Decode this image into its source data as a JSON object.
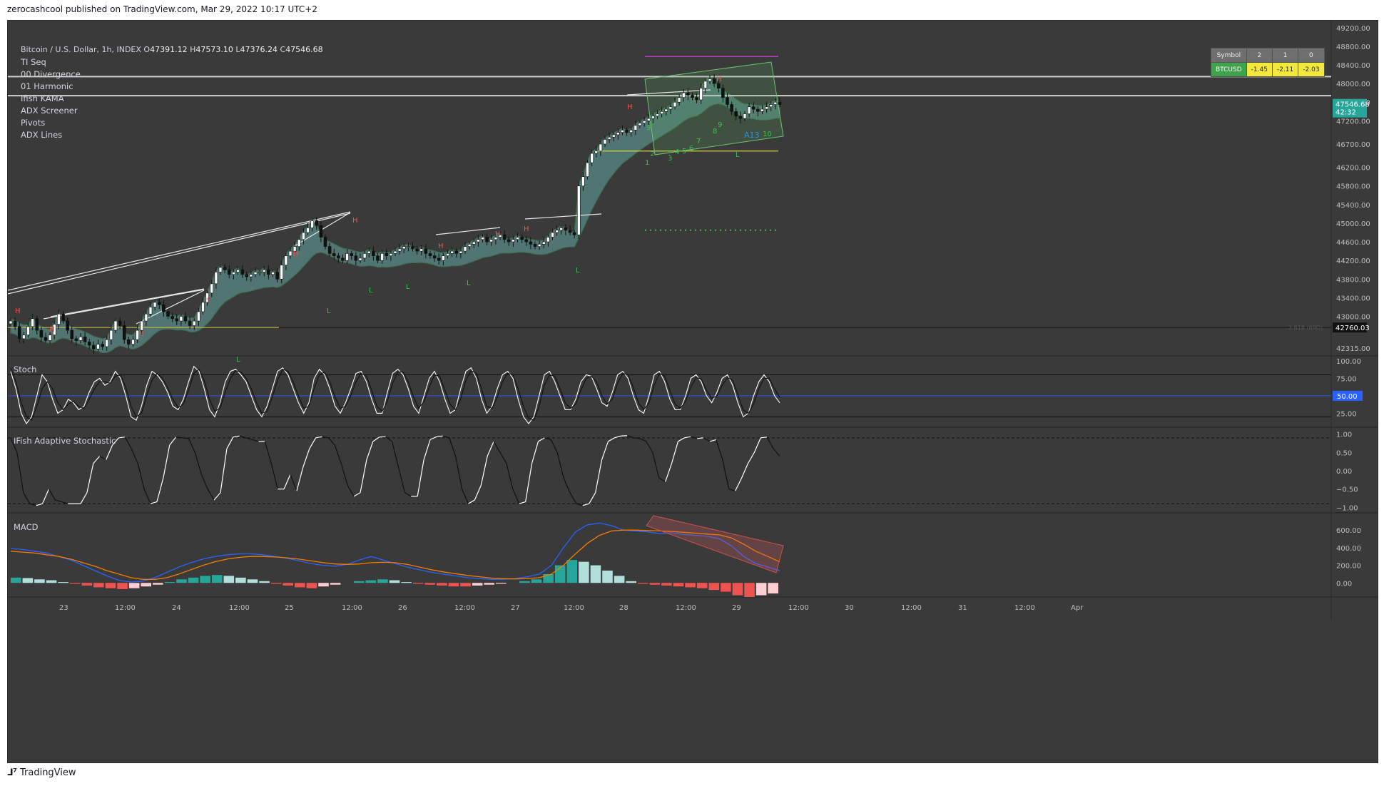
{
  "caption": "zerocashcool published on TradingView.com, Mar 29, 2022 10:17 UTC+2",
  "footer": {
    "icon": "tradingview-logo-icon",
    "brand": "TradingView"
  },
  "header": {
    "symbol": "Bitcoin / U.S. Dollar, 1h, INDEX",
    "ohlc": [
      {
        "k": "O",
        "v": "47391.12"
      },
      {
        "k": "H",
        "v": "47573.10"
      },
      {
        "k": "L",
        "v": "47376.24"
      },
      {
        "k": "C",
        "v": "47546.68"
      }
    ],
    "indicators": [
      "TI Seq",
      "00 Divergence",
      "01 Harmonic",
      "Ifish KAMA",
      "ADX Screener",
      "Pivots",
      "ADX Lines"
    ]
  },
  "symbol_table": {
    "headers": [
      "Symbol",
      "2",
      "1",
      "0"
    ],
    "rows": [
      {
        "symbol": "BTCUSD",
        "values": [
          "-1.45",
          "-2.11",
          "-2.03"
        ]
      }
    ],
    "colors": {
      "header": "#6f6f6f",
      "symbol": "#3fa34d",
      "value": "#f3e93c"
    }
  },
  "chart_data": [
    {
      "type": "candlestick",
      "title": "Bitcoin / U.S. Dollar, 1h, INDEX",
      "y_ticks": [
        "49200.00",
        "48800.00",
        "48400.00",
        "48000.00",
        "47600.00",
        "47200.00",
        "46700.00",
        "46200.00",
        "45800.00",
        "45400.00",
        "45000.00",
        "44600.00",
        "44200.00",
        "43800.00",
        "43400.00",
        "43000.00",
        "42315.00"
      ],
      "ylim": [
        42150,
        49350
      ],
      "x_ticks": [
        "23",
        "12:00",
        "24",
        "12:00",
        "25",
        "12:00",
        "26",
        "12:00",
        "27",
        "12:00",
        "28",
        "12:00",
        "29",
        "12:00",
        "30",
        "12:00",
        "31",
        "12:00",
        "Apr"
      ],
      "last_price": {
        "value": "47546.68",
        "countdown": "42:32",
        "color": "#26a69a"
      },
      "level_label": {
        "value": "42760.03",
        "text": "3.618 (69D)"
      },
      "horizontal_levels": [
        {
          "price": 48150,
          "color": "#cfcfcf"
        },
        {
          "price": 47740,
          "color": "#cfcfcf"
        },
        {
          "price": 42760,
          "color": "#111111"
        }
      ],
      "pivot_labels_high": "H",
      "pivot_labels_low": "L",
      "seq_numbers": [
        "1",
        "2",
        "3",
        "4",
        "5",
        "6",
        "7",
        "8",
        "9",
        "9",
        "10"
      ],
      "harmonic_label": "A13",
      "price_series": [
        42900,
        42780,
        42520,
        42600,
        42780,
        42950,
        42700,
        42550,
        42480,
        42600,
        42830,
        43050,
        42900,
        42700,
        42520,
        42480,
        42560,
        42450,
        42380,
        42300,
        42400,
        42350,
        42500,
        42700,
        42900,
        42800,
        42500,
        42400,
        42500,
        42700,
        42900,
        43050,
        43200,
        43300,
        43250,
        43100,
        43000,
        42950,
        42900,
        43000,
        42900,
        42800,
        42900,
        43100,
        43300,
        43500,
        43700,
        43950,
        44050,
        44000,
        43900,
        43950,
        44000,
        43900,
        43850,
        43900,
        43950,
        43950,
        44000,
        43900,
        43950,
        43800,
        44100,
        44300,
        44400,
        44500,
        44650,
        44800,
        44900,
        45050,
        44950,
        44700,
        44500,
        44350,
        44300,
        44250,
        44200,
        44350,
        44300,
        44200,
        44250,
        44350,
        44400,
        44300,
        44200,
        44350,
        44300,
        44350,
        44400,
        44450,
        44500,
        44500,
        44450,
        44400,
        44450,
        44350,
        44300,
        44250,
        44200,
        44300,
        44350,
        44400,
        44350,
        44400,
        44500,
        44550,
        44600,
        44650,
        44700,
        44600,
        44650,
        44700,
        44750,
        44650,
        44600,
        44650,
        44700,
        44650,
        44600,
        44550,
        44500,
        44550,
        44600,
        44700,
        44800,
        44850,
        44900,
        44850,
        44800,
        44750,
        45800,
        46000,
        46300,
        46500,
        46550,
        46700,
        46800,
        46850,
        46900,
        46950,
        47000,
        46950,
        47000,
        47100,
        47150,
        47200,
        47250,
        47300,
        47350,
        47400,
        47450,
        47500,
        47600,
        47700,
        47800,
        47750,
        47700,
        47650,
        47900,
        48050,
        48100,
        48000,
        47900,
        47700,
        47550,
        47400,
        47300,
        47250,
        47350,
        47500,
        47450,
        47400,
        47450,
        47500,
        47550,
        47600,
        47550
      ]
    },
    {
      "type": "line",
      "title": "Stoch",
      "y_ticks": [
        "100.00",
        "75.00",
        "50.00",
        "25.00"
      ],
      "ylim": [
        5,
        105
      ],
      "levels": [
        80,
        50,
        20
      ],
      "current_label": "50.00",
      "series": [
        {
          "color": "#ffffff",
          "values": [
            85,
            60,
            25,
            10,
            20,
            50,
            80,
            70,
            45,
            25,
            30,
            45,
            40,
            30,
            35,
            55,
            70,
            75,
            65,
            70,
            85,
            75,
            50,
            20,
            15,
            35,
            65,
            85,
            80,
            70,
            55,
            35,
            30,
            45,
            70,
            92,
            85,
            60,
            30,
            20,
            40,
            70,
            85,
            88,
            80,
            70,
            50,
            30,
            20,
            35,
            60,
            85,
            90,
            80,
            60,
            40,
            25,
            40,
            75,
            88,
            80,
            60,
            35,
            25,
            40,
            60,
            82,
            85,
            70,
            45,
            25,
            25,
            55,
            82,
            88,
            80,
            60,
            35,
            25,
            50,
            75,
            85,
            70,
            45,
            25,
            30,
            60,
            85,
            90,
            75,
            45,
            25,
            35,
            60,
            80,
            85,
            75,
            45,
            20,
            10,
            20,
            50,
            80,
            85,
            70,
            50,
            30,
            30,
            45,
            70,
            80,
            78,
            60,
            40,
            35,
            55,
            80,
            85,
            75,
            50,
            30,
            25,
            50,
            80,
            85,
            70,
            45,
            30,
            30,
            50,
            75,
            80,
            70,
            50,
            40,
            55,
            75,
            80,
            65,
            40,
            20,
            25,
            50,
            70,
            80,
            70,
            50,
            40
          ]
        },
        {
          "color": "#111111",
          "values": [
            90,
            70,
            40,
            20,
            15,
            35,
            60,
            70,
            60,
            40,
            30,
            38,
            42,
            35,
            32,
            45,
            60,
            70,
            70,
            68,
            78,
            80,
            62,
            35,
            20,
            25,
            50,
            72,
            82,
            75,
            62,
            45,
            33,
            38,
            58,
            82,
            88,
            72,
            45,
            28,
            32,
            55,
            75,
            86,
            84,
            75,
            60,
            40,
            25,
            28,
            48,
            72,
            88,
            85,
            70,
            50,
            32,
            35,
            60,
            80,
            84,
            70,
            48,
            32,
            35,
            50,
            70,
            82,
            78,
            58,
            35,
            28,
            42,
            68,
            84,
            84,
            70,
            48,
            32,
            42,
            62,
            80,
            78,
            58,
            38,
            30,
            45,
            72,
            86,
            82,
            60,
            35,
            32,
            48,
            70,
            82,
            80,
            60,
            35,
            18,
            15,
            35,
            65,
            80,
            78,
            60,
            40,
            32,
            38,
            58,
            75,
            78,
            70,
            50,
            38,
            45,
            68,
            82,
            80,
            62,
            40,
            30,
            40,
            65,
            82,
            78,
            58,
            38,
            32,
            42,
            62,
            76,
            74,
            58,
            46,
            50,
            65,
            76,
            72,
            52,
            30,
            25,
            38,
            60,
            75,
            75,
            60,
            48
          ]
        }
      ]
    },
    {
      "type": "line",
      "title": "IFish Adaptive Stochastic",
      "y_ticks": [
        "1.00",
        "0.50",
        "0.00",
        "−0.50",
        "−1.00"
      ],
      "ylim": [
        -1.15,
        1.15
      ],
      "levels": [
        0.9,
        -0.9
      ],
      "series": [
        {
          "color": "multicolor",
          "values": [
            0.9,
            0.5,
            -0.6,
            -0.9,
            -0.95,
            -0.9,
            -0.5,
            -0.8,
            -0.85,
            -0.9,
            -0.9,
            -0.9,
            -0.6,
            0.2,
            0.4,
            0.3,
            0.7,
            0.9,
            0.92,
            0.6,
            0.2,
            -0.5,
            -0.9,
            -0.85,
            -0.2,
            0.7,
            0.92,
            0.9,
            0.88,
            0.5,
            -0.1,
            -0.5,
            -0.8,
            -0.6,
            0.6,
            0.92,
            0.95,
            0.9,
            0.85,
            0.8,
            0.8,
            0.2,
            -0.5,
            -0.5,
            -0.1,
            -0.55,
            0.1,
            0.6,
            0.9,
            0.93,
            0.9,
            0.7,
            0.2,
            -0.4,
            -0.7,
            -0.6,
            0.3,
            0.8,
            0.92,
            0.93,
            0.8,
            0.1,
            -0.6,
            -0.7,
            -0.7,
            0.3,
            0.85,
            0.93,
            0.95,
            0.9,
            0.4,
            -0.5,
            -0.9,
            -0.8,
            -0.4,
            0.4,
            0.8,
            0.5,
            0.2,
            -0.5,
            -0.9,
            -0.85,
            0.2,
            0.8,
            0.9,
            0.85,
            0.5,
            -0.2,
            -0.6,
            -0.9,
            -0.95,
            -0.9,
            -0.6,
            0.3,
            0.8,
            0.9,
            0.95,
            0.96,
            0.9,
            0.88,
            0.8,
            0.5,
            -0.2,
            -0.3,
            0.2,
            0.8,
            0.9,
            0.93,
            0.88,
            0.9,
            0.8,
            0.85,
            0.3,
            -0.5,
            -0.55,
            -0.2,
            0.2,
            0.5,
            0.9,
            0.92,
            0.6,
            0.4
          ]
        }
      ]
    },
    {
      "type": "line+bar",
      "title": "MACD",
      "y_ticks": [
        "600.00",
        "400.00",
        "200.00",
        "0.00"
      ],
      "ylim": [
        -160,
        780
      ],
      "series": [
        {
          "name": "",
          "color": "#2962ff",
          "values": [
            390,
            380,
            360,
            340,
            300,
            260,
            200,
            140,
            80,
            30,
            10,
            20,
            60,
            120,
            180,
            230,
            270,
            300,
            320,
            330,
            330,
            320,
            300,
            280,
            250,
            220,
            200,
            190,
            210,
            260,
            300,
            260,
            220,
            180,
            150,
            120,
            100,
            80,
            60,
            50,
            40,
            40,
            50,
            70,
            100,
            200,
            400,
            580,
            660,
            680,
            650,
            600,
            590,
            580,
            560,
            570,
            550,
            540,
            530,
            500,
            420,
            300,
            220,
            180,
            140
          ]
        },
        {
          "name": "",
          "color": "#f57c00",
          "values": [
            360,
            350,
            340,
            320,
            300,
            270,
            230,
            190,
            140,
            100,
            60,
            40,
            40,
            60,
            100,
            150,
            200,
            240,
            270,
            290,
            300,
            300,
            295,
            285,
            270,
            250,
            230,
            215,
            210,
            215,
            230,
            235,
            230,
            210,
            180,
            150,
            125,
            105,
            85,
            70,
            55,
            48,
            45,
            50,
            60,
            100,
            200,
            330,
            450,
            540,
            590,
            600,
            600,
            595,
            590,
            585,
            575,
            565,
            555,
            545,
            510,
            440,
            360,
            300,
            240
          ]
        }
      ],
      "histogram": [
        60,
        55,
        40,
        30,
        10,
        -10,
        -30,
        -50,
        -60,
        -70,
        -60,
        -40,
        -20,
        10,
        40,
        60,
        80,
        90,
        80,
        60,
        40,
        20,
        -10,
        -30,
        -50,
        -60,
        -40,
        -20,
        0,
        20,
        30,
        40,
        30,
        10,
        -10,
        -20,
        -30,
        -40,
        -40,
        -30,
        -20,
        -10,
        0,
        20,
        40,
        100,
        200,
        260,
        240,
        200,
        140,
        80,
        20,
        -10,
        -20,
        -30,
        -40,
        -50,
        -60,
        -80,
        -100,
        -140,
        -160,
        -140,
        -120
      ]
    }
  ]
}
